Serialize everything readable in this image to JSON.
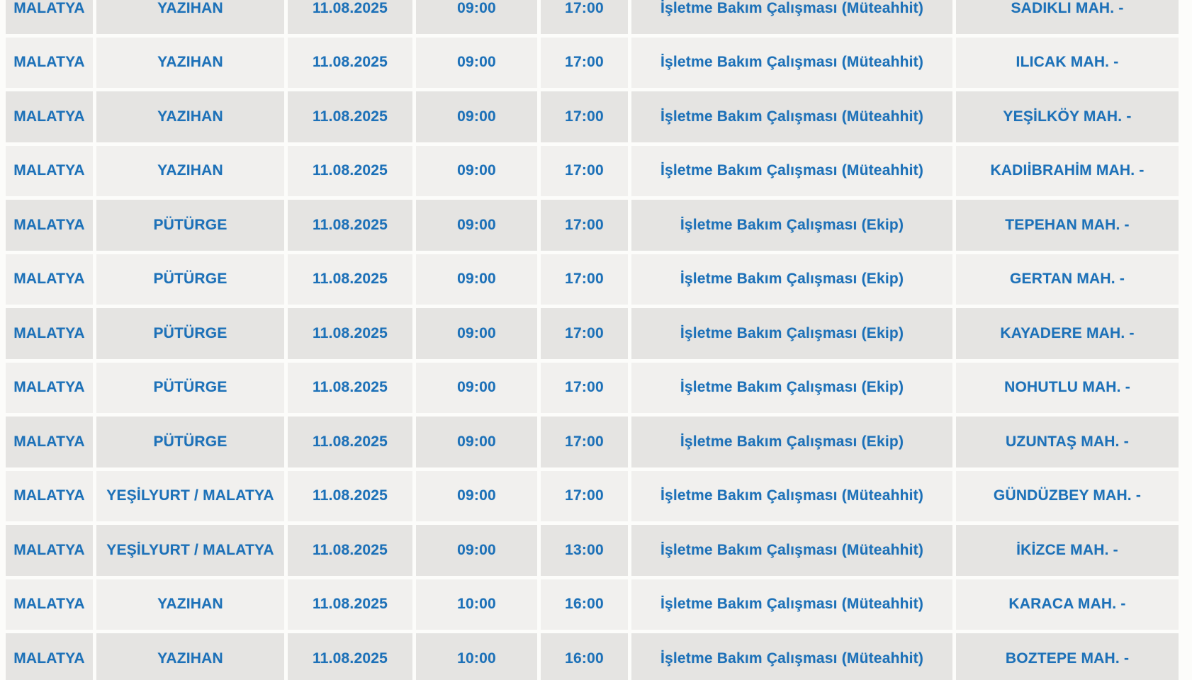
{
  "theme": {
    "row_dark": "#e5e4e2",
    "row_light": "#f1f0ee",
    "gap_color": "#fcfcfa",
    "text_blue": "#1d71b8"
  },
  "table": {
    "fields": [
      "city",
      "district",
      "date",
      "start_time",
      "end_time",
      "reason",
      "area"
    ],
    "rows": [
      [
        "MALATYA",
        "YAZIHAN",
        "11.08.2025",
        "09:00",
        "17:00",
        "İşletme Bakım Çalışması (Müteahhit)",
        "SADIKLI MAH. -"
      ],
      [
        "MALATYA",
        "YAZIHAN",
        "11.08.2025",
        "09:00",
        "17:00",
        "İşletme Bakım Çalışması (Müteahhit)",
        "ILICAK MAH. -"
      ],
      [
        "MALATYA",
        "YAZIHAN",
        "11.08.2025",
        "09:00",
        "17:00",
        "İşletme Bakım Çalışması (Müteahhit)",
        "YEŞİLKÖY MAH. -"
      ],
      [
        "MALATYA",
        "YAZIHAN",
        "11.08.2025",
        "09:00",
        "17:00",
        "İşletme Bakım Çalışması (Müteahhit)",
        "KADIİBRAHİM MAH. -"
      ],
      [
        "MALATYA",
        "PÜTÜRGE",
        "11.08.2025",
        "09:00",
        "17:00",
        "İşletme Bakım Çalışması (Ekip)",
        "TEPEHAN MAH. -"
      ],
      [
        "MALATYA",
        "PÜTÜRGE",
        "11.08.2025",
        "09:00",
        "17:00",
        "İşletme Bakım Çalışması (Ekip)",
        "GERTAN MAH. -"
      ],
      [
        "MALATYA",
        "PÜTÜRGE",
        "11.08.2025",
        "09:00",
        "17:00",
        "İşletme Bakım Çalışması (Ekip)",
        "KAYADERE MAH. -"
      ],
      [
        "MALATYA",
        "PÜTÜRGE",
        "11.08.2025",
        "09:00",
        "17:00",
        "İşletme Bakım Çalışması (Ekip)",
        "NOHUTLU MAH. -"
      ],
      [
        "MALATYA",
        "PÜTÜRGE",
        "11.08.2025",
        "09:00",
        "17:00",
        "İşletme Bakım Çalışması (Ekip)",
        "UZUNTAŞ MAH. -"
      ],
      [
        "MALATYA",
        "YEŞİLYURT / MALATYA",
        "11.08.2025",
        "09:00",
        "17:00",
        "İşletme Bakım Çalışması (Müteahhit)",
        "GÜNDÜZBEY MAH. -"
      ],
      [
        "MALATYA",
        "YEŞİLYURT / MALATYA",
        "11.08.2025",
        "09:00",
        "13:00",
        "İşletme Bakım Çalışması (Müteahhit)",
        "İKİZCE MAH. -"
      ],
      [
        "MALATYA",
        "YAZIHAN",
        "11.08.2025",
        "10:00",
        "16:00",
        "İşletme Bakım Çalışması (Müteahhit)",
        "KARACA MAH. -"
      ],
      [
        "MALATYA",
        "YAZIHAN",
        "11.08.2025",
        "10:00",
        "16:00",
        "İşletme Bakım Çalışması (Müteahhit)",
        "BOZTEPE MAH. -"
      ]
    ]
  }
}
